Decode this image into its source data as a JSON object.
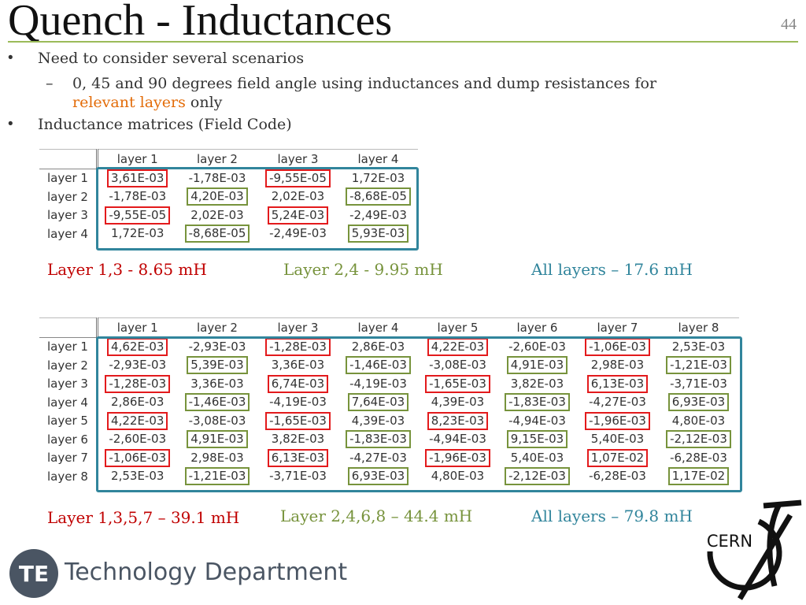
{
  "slide": {
    "title": "Quench - Inductances",
    "number": "44"
  },
  "bullets": {
    "b1": "Need to consider several scenarios",
    "sub_prefix": "0, 45 and 90 degrees field angle using inductances and dump resistances for",
    "sub_highlight": "relevant layers",
    "sub_suffix": "only",
    "b2": "Inductance matrices (Field Code)",
    "bullet_symbol": "•",
    "dash_symbol": "–"
  },
  "matrix4": {
    "col_headers": [
      "layer 1",
      "layer 2",
      "layer 3",
      "layer 4"
    ],
    "row_headers": [
      "layer 1",
      "layer 2",
      "layer 3",
      "layer 4"
    ],
    "rows": [
      [
        "3,61E-03",
        "-1,78E-03",
        "-9,55E-05",
        "1,72E-03"
      ],
      [
        "-1,78E-03",
        "4,20E-03",
        "2,02E-03",
        "-8,68E-05"
      ],
      [
        "-9,55E-05",
        "2,02E-03",
        "5,24E-03",
        "-2,49E-03"
      ],
      [
        "1,72E-03",
        "-8,68E-05",
        "-2,49E-03",
        "5,93E-03"
      ]
    ]
  },
  "summary4": {
    "odd": "Layer 1,3 - 8.65 mH",
    "even": "Layer 2,4 - 9.95 mH",
    "all": "All layers – 17.6 mH"
  },
  "matrix8": {
    "col_headers": [
      "layer 1",
      "layer 2",
      "layer 3",
      "layer 4",
      "layer 5",
      "layer 6",
      "layer 7",
      "layer 8"
    ],
    "row_headers": [
      "layer 1",
      "layer 2",
      "layer 3",
      "layer 4",
      "layer 5",
      "layer 6",
      "layer 7",
      "layer 8"
    ],
    "rows": [
      [
        "4,62E-03",
        "-2,93E-03",
        "-1,28E-03",
        "2,86E-03",
        "4,22E-03",
        "-2,60E-03",
        "-1,06E-03",
        "2,53E-03"
      ],
      [
        "-2,93E-03",
        "5,39E-03",
        "3,36E-03",
        "-1,46E-03",
        "-3,08E-03",
        "4,91E-03",
        "2,98E-03",
        "-1,21E-03"
      ],
      [
        "-1,28E-03",
        "3,36E-03",
        "6,74E-03",
        "-4,19E-03",
        "-1,65E-03",
        "3,82E-03",
        "6,13E-03",
        "-3,71E-03"
      ],
      [
        "2,86E-03",
        "-1,46E-03",
        "-4,19E-03",
        "7,64E-03",
        "4,39E-03",
        "-1,83E-03",
        "-4,27E-03",
        "6,93E-03"
      ],
      [
        "4,22E-03",
        "-3,08E-03",
        "-1,65E-03",
        "4,39E-03",
        "8,23E-03",
        "-4,94E-03",
        "-1,96E-03",
        "4,80E-03"
      ],
      [
        "-2,60E-03",
        "4,91E-03",
        "3,82E-03",
        "-1,83E-03",
        "-4,94E-03",
        "9,15E-03",
        "5,40E-03",
        "-2,12E-03"
      ],
      [
        "-1,06E-03",
        "2,98E-03",
        "6,13E-03",
        "-4,27E-03",
        "-1,96E-03",
        "5,40E-03",
        "1,07E-02",
        "-6,28E-03"
      ],
      [
        "2,53E-03",
        "-1,21E-03",
        "-3,71E-03",
        "6,93E-03",
        "4,80E-03",
        "-2,12E-03",
        "-6,28E-03",
        "1,17E-02"
      ]
    ]
  },
  "summary8": {
    "odd": "Layer 1,3,5,7 – 39.1 mH",
    "even": "Layer 2,4,6,8 – 44.4 mH",
    "all": "All layers – 79.8 mH"
  },
  "footer": {
    "logo_text": "TE",
    "department": "Technology Department",
    "cern_logo_text": "CERN"
  },
  "colors": {
    "title_rule": "#9bbb59",
    "odd_highlight": "#e31a1c",
    "even_highlight": "#77933c",
    "all_layers_frame": "#31859c",
    "relevant_layers_text": "#e36c09"
  }
}
